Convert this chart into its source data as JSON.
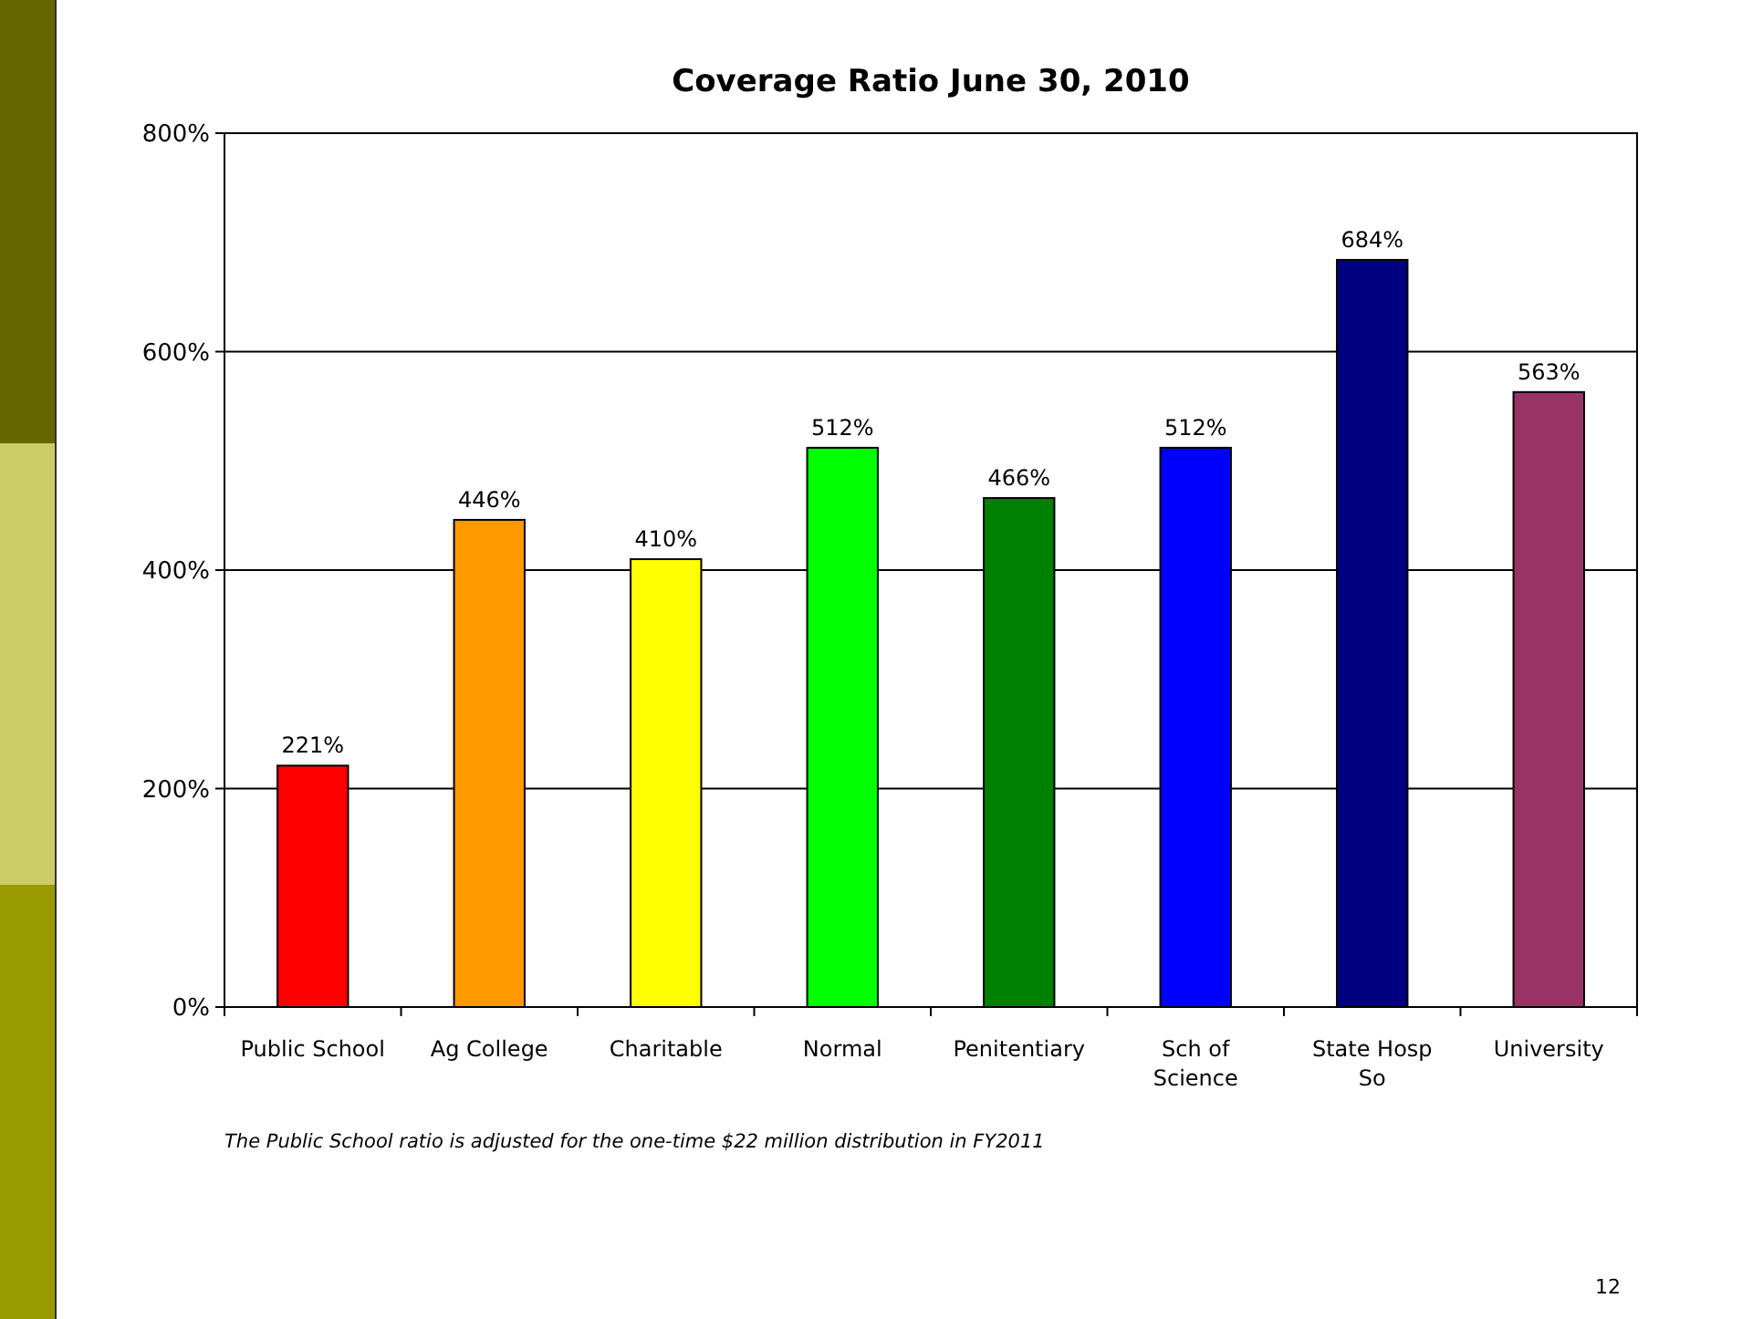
{
  "chart_data": {
    "type": "bar",
    "title": "Coverage Ratio June 30, 2010",
    "categories": [
      "Public School",
      "Ag College",
      "Charitable",
      "Normal",
      "Penitentiary",
      "Sch of Science",
      "State Hosp So",
      "University"
    ],
    "values": [
      221,
      446,
      410,
      512,
      466,
      512,
      684,
      563
    ],
    "colors": [
      "#ff0000",
      "#ff9900",
      "#ffff00",
      "#00ff00",
      "#008000",
      "#0000ff",
      "#000080",
      "#993366"
    ],
    "value_labels": [
      "221%",
      "446%",
      "410%",
      "512%",
      "466%",
      "512%",
      "684%",
      "563%"
    ],
    "ylim": [
      0,
      800
    ],
    "yticks": [
      {
        "value": 0,
        "label": "0%"
      },
      {
        "value": 200,
        "label": "200%"
      },
      {
        "value": 400,
        "label": "400%"
      },
      {
        "value": 600,
        "label": "600%"
      },
      {
        "value": 800,
        "label": "800%"
      }
    ],
    "grid": "y",
    "annotations": [
      "The Public School ratio is adjusted for the one-time $22 million distribution in FY2011",
      "12"
    ]
  }
}
